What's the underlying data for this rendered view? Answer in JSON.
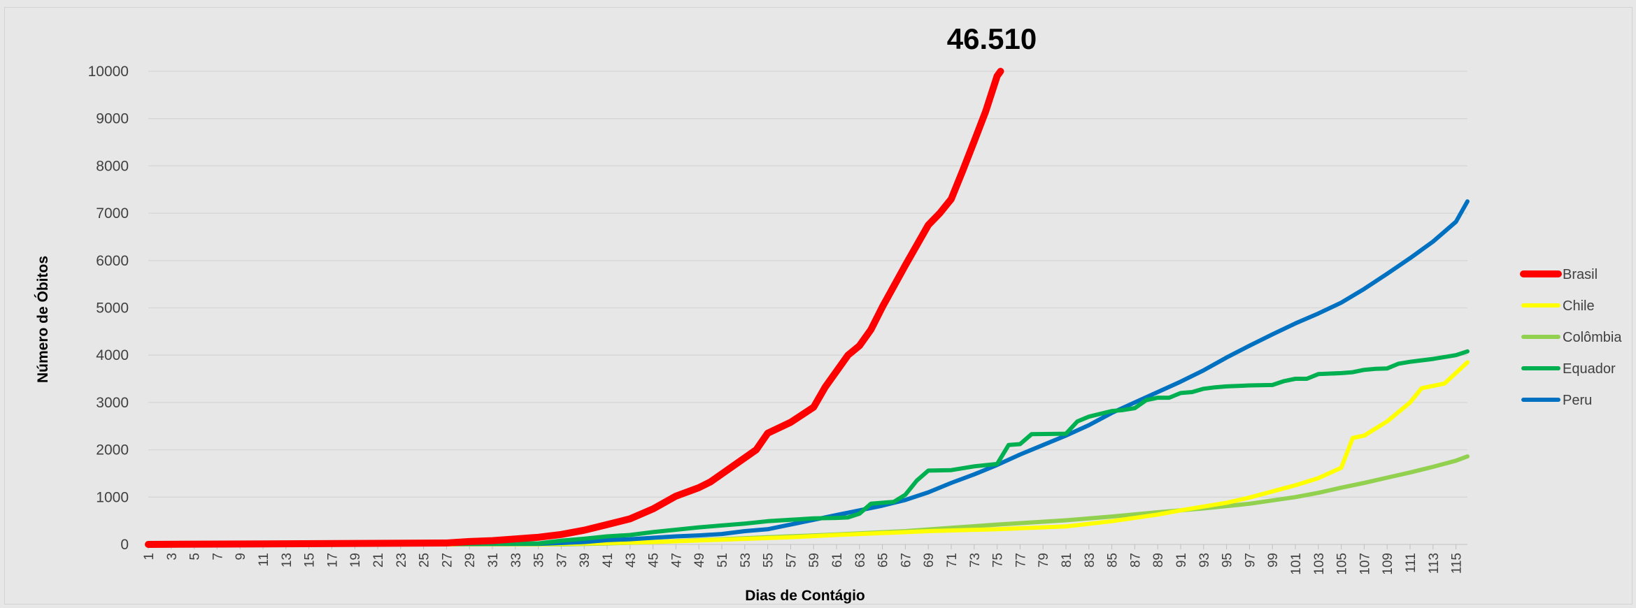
{
  "chart_data": {
    "type": "line",
    "annotation": "46.510",
    "xlabel": "Dias de Contágio",
    "ylabel": "Número de Óbitos",
    "ylim": [
      0,
      10000
    ],
    "yticks": [
      0,
      1000,
      2000,
      3000,
      4000,
      5000,
      6000,
      7000,
      8000,
      9000,
      10000
    ],
    "x_range": [
      1,
      116
    ],
    "x_tick_step": 2,
    "grid": "horizontal",
    "legend_position": "right",
    "series": [
      {
        "name": "Brasil",
        "color": "#ff0000",
        "points": [
          [
            1,
            0
          ],
          [
            27,
            30
          ],
          [
            29,
            60
          ],
          [
            31,
            80
          ],
          [
            33,
            115
          ],
          [
            35,
            150
          ],
          [
            37,
            210
          ],
          [
            39,
            300
          ],
          [
            41,
            420
          ],
          [
            43,
            540
          ],
          [
            45,
            750
          ],
          [
            47,
            1020
          ],
          [
            49,
            1200
          ],
          [
            50,
            1320
          ],
          [
            52,
            1660
          ],
          [
            54,
            2000
          ],
          [
            55,
            2350
          ],
          [
            57,
            2580
          ],
          [
            59,
            2900
          ],
          [
            60,
            3320
          ],
          [
            62,
            4000
          ],
          [
            63,
            4200
          ],
          [
            64,
            4540
          ],
          [
            65,
            5020
          ],
          [
            67,
            5900
          ],
          [
            69,
            6750
          ],
          [
            70,
            7000
          ],
          [
            71,
            7300
          ],
          [
            72,
            7900
          ],
          [
            73,
            8520
          ],
          [
            74,
            9150
          ],
          [
            75,
            9900
          ],
          [
            75.3,
            10000
          ]
        ]
      },
      {
        "name": "Chile",
        "color": "#ffff00",
        "points": [
          [
            1,
            0
          ],
          [
            35,
            0
          ],
          [
            39,
            20
          ],
          [
            45,
            50
          ],
          [
            51,
            100
          ],
          [
            57,
            150
          ],
          [
            61,
            200
          ],
          [
            65,
            240
          ],
          [
            69,
            280
          ],
          [
            75,
            320
          ],
          [
            81,
            380
          ],
          [
            85,
            490
          ],
          [
            89,
            630
          ],
          [
            91,
            720
          ],
          [
            93,
            800
          ],
          [
            95,
            880
          ],
          [
            97,
            990
          ],
          [
            99,
            1120
          ],
          [
            101,
            1250
          ],
          [
            103,
            1400
          ],
          [
            105,
            1620
          ],
          [
            106,
            2250
          ],
          [
            107,
            2300
          ],
          [
            109,
            2600
          ],
          [
            111,
            3000
          ],
          [
            112,
            3300
          ],
          [
            113,
            3350
          ],
          [
            114,
            3400
          ],
          [
            116,
            3850
          ]
        ]
      },
      {
        "name": "Colômbia",
        "color": "#92d050",
        "points": [
          [
            1,
            0
          ],
          [
            37,
            0
          ],
          [
            41,
            20
          ],
          [
            45,
            50
          ],
          [
            49,
            90
          ],
          [
            55,
            150
          ],
          [
            61,
            210
          ],
          [
            67,
            280
          ],
          [
            71,
            350
          ],
          [
            75,
            420
          ],
          [
            81,
            510
          ],
          [
            85,
            590
          ],
          [
            89,
            680
          ],
          [
            93,
            760
          ],
          [
            97,
            860
          ],
          [
            101,
            1000
          ],
          [
            103,
            1090
          ],
          [
            105,
            1200
          ],
          [
            107,
            1300
          ],
          [
            109,
            1410
          ],
          [
            111,
            1520
          ],
          [
            113,
            1640
          ],
          [
            115,
            1770
          ],
          [
            116,
            1860
          ]
        ]
      },
      {
        "name": "Equador",
        "color": "#00b050",
        "points": [
          [
            1,
            0
          ],
          [
            35,
            20
          ],
          [
            37,
            80
          ],
          [
            39,
            120
          ],
          [
            41,
            170
          ],
          [
            43,
            200
          ],
          [
            45,
            260
          ],
          [
            47,
            310
          ],
          [
            49,
            360
          ],
          [
            51,
            400
          ],
          [
            53,
            440
          ],
          [
            55,
            490
          ],
          [
            57,
            520
          ],
          [
            59,
            550
          ],
          [
            61,
            560
          ],
          [
            62,
            570
          ],
          [
            63,
            650
          ],
          [
            64,
            860
          ],
          [
            66,
            900
          ],
          [
            67,
            1050
          ],
          [
            68,
            1350
          ],
          [
            69,
            1560
          ],
          [
            71,
            1570
          ],
          [
            73,
            1650
          ],
          [
            75,
            1700
          ],
          [
            76,
            2100
          ],
          [
            77,
            2120
          ],
          [
            78,
            2330
          ],
          [
            81,
            2340
          ],
          [
            82,
            2600
          ],
          [
            83,
            2700
          ],
          [
            85,
            2820
          ],
          [
            86,
            2840
          ],
          [
            87,
            2880
          ],
          [
            88,
            3050
          ],
          [
            89,
            3100
          ],
          [
            90,
            3100
          ],
          [
            91,
            3200
          ],
          [
            92,
            3220
          ],
          [
            93,
            3290
          ],
          [
            94,
            3320
          ],
          [
            95,
            3340
          ],
          [
            97,
            3360
          ],
          [
            99,
            3370
          ],
          [
            100,
            3450
          ],
          [
            101,
            3500
          ],
          [
            102,
            3500
          ],
          [
            103,
            3600
          ],
          [
            105,
            3620
          ],
          [
            106,
            3640
          ],
          [
            107,
            3690
          ],
          [
            108,
            3710
          ],
          [
            109,
            3720
          ],
          [
            110,
            3820
          ],
          [
            111,
            3860
          ],
          [
            113,
            3920
          ],
          [
            115,
            4000
          ],
          [
            116,
            4080
          ]
        ]
      },
      {
        "name": "Peru",
        "color": "#0070c0",
        "points": [
          [
            1,
            0
          ],
          [
            35,
            10
          ],
          [
            37,
            30
          ],
          [
            39,
            50
          ],
          [
            41,
            90
          ],
          [
            43,
            110
          ],
          [
            45,
            140
          ],
          [
            47,
            170
          ],
          [
            49,
            190
          ],
          [
            51,
            220
          ],
          [
            53,
            280
          ],
          [
            55,
            320
          ],
          [
            57,
            420
          ],
          [
            59,
            520
          ],
          [
            61,
            620
          ],
          [
            63,
            720
          ],
          [
            65,
            820
          ],
          [
            67,
            940
          ],
          [
            69,
            1100
          ],
          [
            71,
            1300
          ],
          [
            73,
            1480
          ],
          [
            75,
            1680
          ],
          [
            77,
            1900
          ],
          [
            79,
            2100
          ],
          [
            81,
            2300
          ],
          [
            83,
            2520
          ],
          [
            85,
            2780
          ],
          [
            87,
            3000
          ],
          [
            89,
            3220
          ],
          [
            91,
            3440
          ],
          [
            93,
            3680
          ],
          [
            95,
            3950
          ],
          [
            97,
            4200
          ],
          [
            99,
            4440
          ],
          [
            101,
            4670
          ],
          [
            103,
            4880
          ],
          [
            105,
            5110
          ],
          [
            107,
            5400
          ],
          [
            109,
            5720
          ],
          [
            111,
            6050
          ],
          [
            113,
            6400
          ],
          [
            115,
            6820
          ],
          [
            116,
            7250
          ]
        ]
      }
    ]
  }
}
